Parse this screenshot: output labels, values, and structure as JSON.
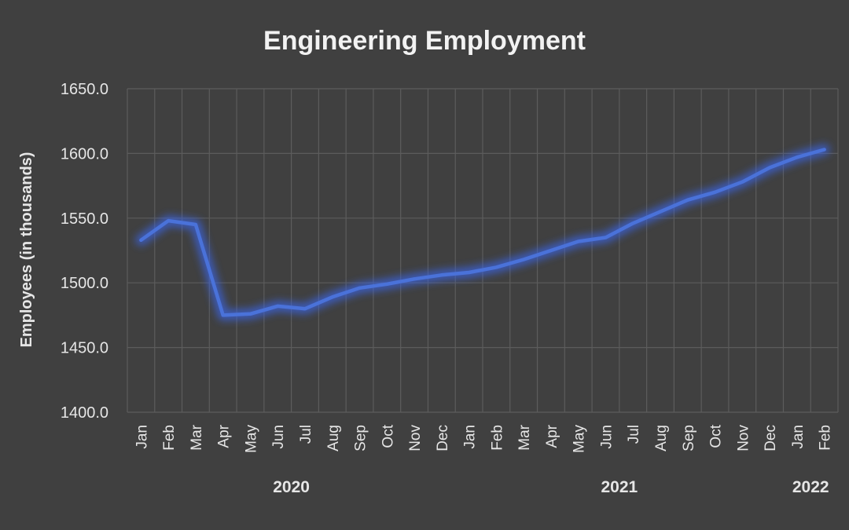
{
  "chart_data": {
    "type": "line",
    "title": "Engineering Employment",
    "xlabel": "",
    "ylabel": "Employees (in thousands)",
    "ylim": [
      1400,
      1650
    ],
    "yticks": [
      "1400.0",
      "1450.0",
      "1500.0",
      "1550.0",
      "1600.0",
      "1650.0"
    ],
    "years": [
      {
        "label": "2020",
        "first_index": 0,
        "last_index": 11
      },
      {
        "label": "2021",
        "first_index": 12,
        "last_index": 23
      },
      {
        "label": "2022",
        "first_index": 24,
        "last_index": 25
      }
    ],
    "categories": [
      "Jan",
      "Feb",
      "Mar",
      "Apr",
      "May",
      "Jun",
      "Jul",
      "Aug",
      "Sep",
      "Oct",
      "Nov",
      "Dec",
      "Jan",
      "Feb",
      "Mar",
      "Apr",
      "May",
      "Jun",
      "Jul",
      "Aug",
      "Sep",
      "Oct",
      "Nov",
      "Dec",
      "Jan",
      "Feb"
    ],
    "series": [
      {
        "values": [
          1533,
          1548,
          1545,
          1475,
          1476,
          1482,
          1480,
          1489,
          1496,
          1499,
          1503,
          1506,
          1508,
          1512,
          1518,
          1525,
          1532,
          1535,
          1546,
          1555,
          1564,
          1570,
          1578,
          1589,
          1597,
          1603
        ]
      }
    ],
    "grid": true,
    "colors": {
      "background": "#404040",
      "line": "#4a72d9",
      "glow": "#3a64e0",
      "grid": "#5c5c5c",
      "text": "#e6e6e6"
    }
  }
}
